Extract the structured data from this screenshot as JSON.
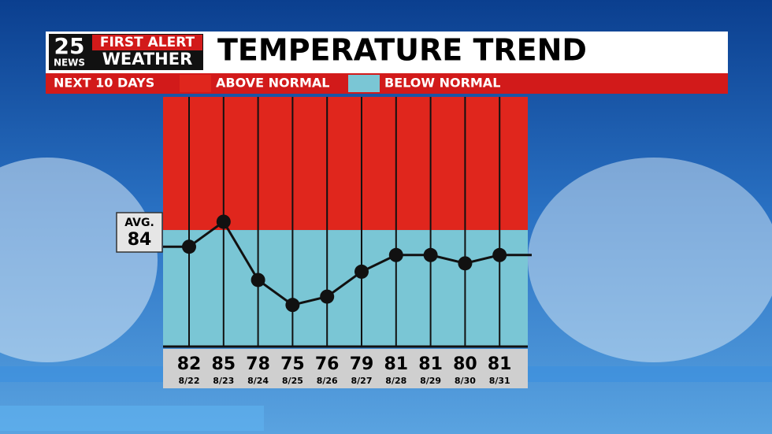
{
  "logo": {
    "number": "25",
    "station": "NEWS",
    "brand": "FIRST ALERT",
    "product": "WEATHER"
  },
  "chart_data": {
    "type": "line",
    "title": "TEMPERATURE TREND",
    "subtitle": "NEXT 10 DAYS",
    "zones": [
      {
        "name": "ABOVE NORMAL",
        "color": "#e0261d"
      },
      {
        "name": "BELOW NORMAL",
        "color": "#7ac6d5"
      }
    ],
    "average_label": "AVG.",
    "average": 84,
    "categories": [
      "8/22",
      "8/23",
      "8/24",
      "8/25",
      "8/26",
      "8/27",
      "8/28",
      "8/29",
      "8/30",
      "8/31"
    ],
    "values": [
      82,
      85,
      78,
      75,
      76,
      79,
      81,
      81,
      80,
      81
    ],
    "color": "#111111",
    "ylim": [
      70,
      100
    ]
  }
}
